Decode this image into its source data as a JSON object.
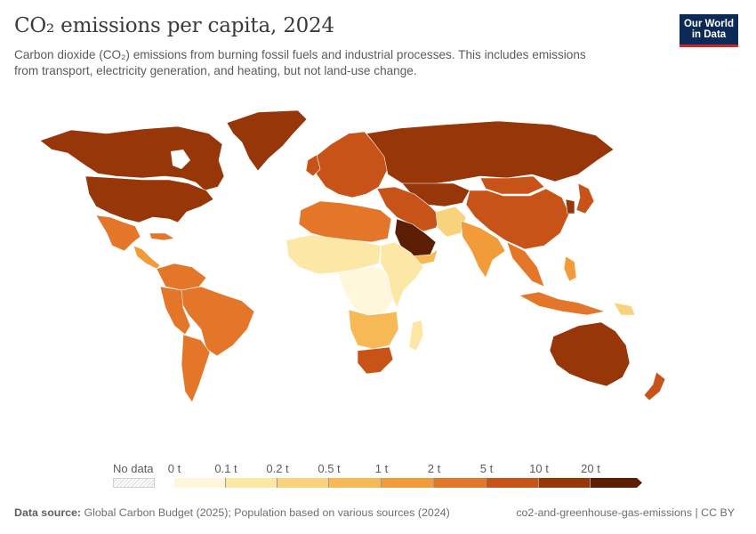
{
  "header": {
    "title": "CO₂ emissions per capita, 2024",
    "subtitle_line1": "Carbon dioxide (CO₂) emissions from burning fossil fuels and industrial processes. This includes emissions",
    "subtitle_line2": "from transport, electricity generation, and heating, but not land-use change."
  },
  "logo": {
    "line1": "Our World",
    "line2": "in Data",
    "bg": "#0d2a57",
    "accent": "#c8272c"
  },
  "legend": {
    "no_data_label": "No data",
    "ticks": [
      "0 t",
      "0.1 t",
      "0.2 t",
      "0.5 t",
      "1 t",
      "2 t",
      "5 t",
      "10 t",
      "20 t"
    ],
    "bins": [
      {
        "from": "0 t",
        "to": "0.1 t",
        "color": "#fff6dc"
      },
      {
        "from": "0.1 t",
        "to": "0.2 t",
        "color": "#fde7a6"
      },
      {
        "from": "0.2 t",
        "to": "0.5 t",
        "color": "#f8d27c"
      },
      {
        "from": "0.5 t",
        "to": "1 t",
        "color": "#f7b955"
      },
      {
        "from": "1 t",
        "to": "2 t",
        "color": "#f29b3a"
      },
      {
        "from": "2 t",
        "to": "5 t",
        "color": "#e4762a"
      },
      {
        "from": "5 t",
        "to": "10 t",
        "color": "#c85319"
      },
      {
        "from": "10 t",
        "to": "20 t",
        "color": "#973609"
      },
      {
        "from": "20 t",
        "to": "",
        "color": "#5c1d05"
      }
    ]
  },
  "colors": {
    "bin_0": "#fff6dc",
    "bin_1": "#fde7a6",
    "bin_2": "#f8d27c",
    "bin_3": "#f7b955",
    "bin_4": "#f29b3a",
    "bin_5": "#e4762a",
    "bin_6": "#c85319",
    "bin_7": "#973609",
    "bin_8": "#5c1d05"
  },
  "footer": {
    "source_label": "Data source:",
    "source_text": "Global Carbon Budget (2025); Population based on various sources (2024)",
    "slug": "co2-and-greenhouse-gas-emissions | CC BY"
  }
}
